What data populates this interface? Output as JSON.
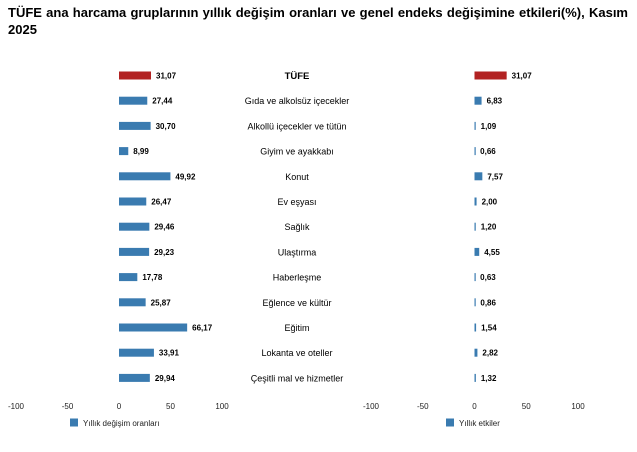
{
  "title": "TÜFE ana harcama gruplarının yıllık değişim oranları ve genel endeks değişimine etkileri(%), Kasım 2025",
  "colors": {
    "highlight": "#B22222",
    "bar": "#3A7BB0"
  },
  "chart_data": [
    {
      "type": "bar",
      "orientation": "horizontal",
      "categories": [
        "TÜFE",
        "Gıda ve alkolsüz içecekler",
        "Alkollü içecekler ve tütün",
        "Giyim ve ayakkabı",
        "Konut",
        "Ev eşyası",
        "Sağlık",
        "Ulaştırma",
        "Haberleşme",
        "Eğlence ve kültür",
        "Eğitim",
        "Lokanta ve oteller",
        "Çeşitli mal ve hizmetler"
      ],
      "series": [
        {
          "name": "Yıllık değişim oranları",
          "values": [
            31.07,
            27.44,
            30.7,
            8.99,
            49.92,
            26.47,
            29.46,
            29.23,
            17.78,
            25.87,
            66.17,
            33.91,
            29.94
          ],
          "labels": [
            "31,07",
            "27,44",
            "30,70",
            "8,99",
            "49,92",
            "26,47",
            "29,46",
            "29,23",
            "17,78",
            "25,87",
            "66,17",
            "33,91",
            "29,94"
          ]
        }
      ],
      "xlim": [
        -100,
        100
      ],
      "xticks": [
        "-100",
        "-50",
        "0",
        "50",
        "100"
      ],
      "legend_position": "bottom-left"
    },
    {
      "type": "bar",
      "orientation": "horizontal",
      "categories": [
        "TÜFE",
        "Gıda ve alkolsüz içecekler",
        "Alkollü içecekler ve tütün",
        "Giyim ve ayakkabı",
        "Konut",
        "Ev eşyası",
        "Sağlık",
        "Ulaştırma",
        "Haberleşme",
        "Eğlence ve kültür",
        "Eğitim",
        "Lokanta ve oteller",
        "Çeşitli mal ve hizmetler"
      ],
      "series": [
        {
          "name": "Yıllık etkiler",
          "values": [
            31.07,
            6.83,
            1.09,
            0.66,
            7.57,
            2.0,
            1.2,
            4.55,
            0.63,
            0.86,
            1.54,
            2.82,
            1.32
          ],
          "labels": [
            "31,07",
            "6,83",
            "1,09",
            "0,66",
            "7,57",
            "2,00",
            "1,20",
            "4,55",
            "0,63",
            "0,86",
            "1,54",
            "2,82",
            "1,32"
          ]
        }
      ],
      "xlim": [
        -100,
        100
      ],
      "xticks": [
        "-100",
        "-50",
        "0",
        "50",
        "100"
      ],
      "legend_position": "bottom-left"
    }
  ]
}
